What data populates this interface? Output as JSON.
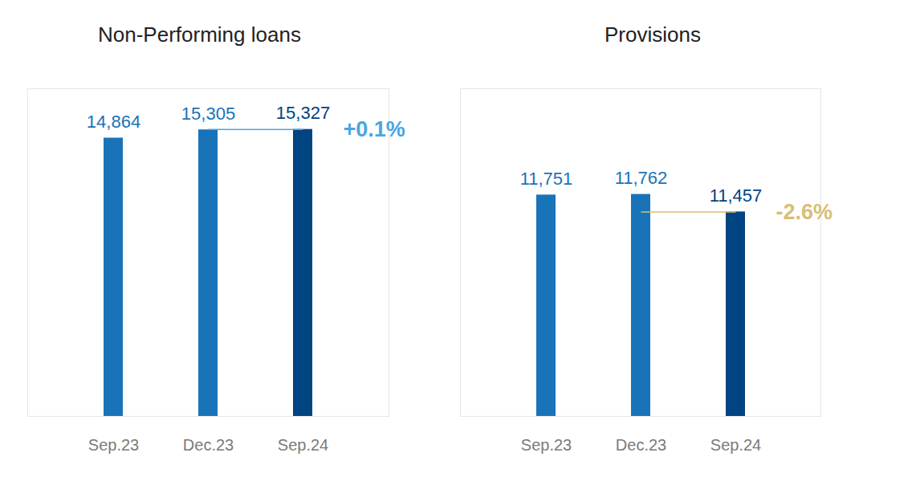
{
  "chart_data": [
    {
      "type": "bar",
      "title": "Non-Performing loans",
      "categories": [
        "Sep.23",
        "Dec.23",
        "Sep.24"
      ],
      "values": [
        14864,
        15305,
        15327
      ],
      "value_labels": [
        "14,864",
        "15,305",
        "15,327"
      ],
      "colors": [
        "#1973b8",
        "#1973b8",
        "#004481"
      ],
      "ylim": [
        0,
        17500
      ],
      "data_labels": true,
      "tick_labels": "x",
      "annotations": [
        {
          "text": "+0.1%",
          "color": "#49a5e6",
          "from": "Dec.23",
          "to": "Sep.24"
        }
      ]
    },
    {
      "type": "bar",
      "title": "Provisions",
      "categories": [
        "Sep.23",
        "Dec.23",
        "Sep.24"
      ],
      "values": [
        11751,
        11762,
        11457
      ],
      "value_labels": [
        "11,751",
        "11,762",
        "11,457"
      ],
      "colors": [
        "#1973b8",
        "#1973b8",
        "#004481"
      ],
      "ylim": [
        7900,
        13600
      ],
      "data_labels": true,
      "tick_labels": "x",
      "annotations": [
        {
          "text": "-2.6%",
          "color": "#d8be75",
          "from": "Dec.23",
          "to": "Sep.24"
        }
      ]
    }
  ]
}
